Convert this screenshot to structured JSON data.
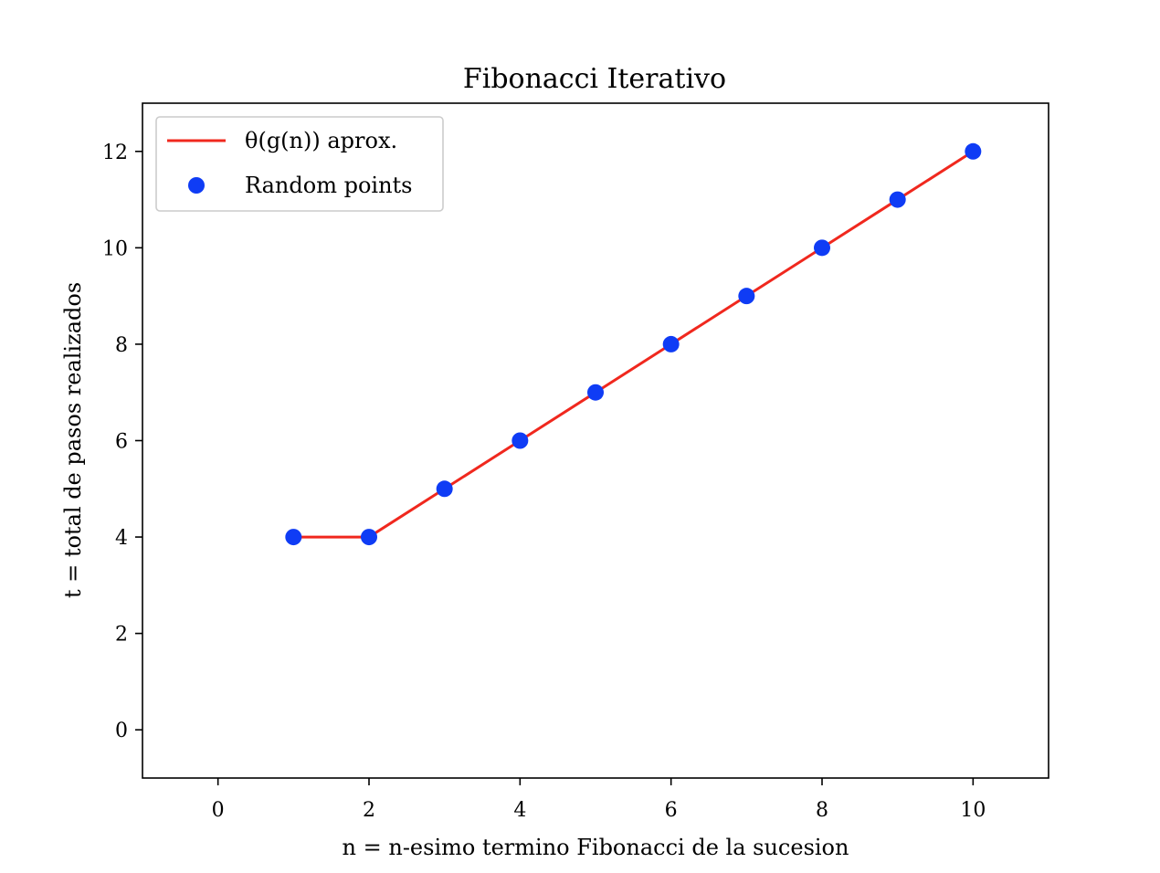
{
  "chart_data": {
    "type": "line",
    "title": "Fibonacci Iterativo",
    "xlabel": "n = n-esimo termino Fibonacci de la sucesion",
    "ylabel": "t = total de pasos realizados",
    "xlim": [
      -1,
      11
    ],
    "ylim": [
      -1,
      13
    ],
    "xticks": [
      0,
      2,
      4,
      6,
      8,
      10
    ],
    "yticks": [
      0,
      2,
      4,
      6,
      8,
      10,
      12
    ],
    "grid": false,
    "legend_position": "top-left",
    "series": [
      {
        "name": "θ(g(n)) aprox.",
        "kind": "line",
        "color": "#f0281e",
        "x": [
          1,
          2,
          3,
          4,
          5,
          6,
          7,
          8,
          9,
          10
        ],
        "y": [
          4,
          4,
          5,
          6,
          7,
          8,
          9,
          10,
          11,
          12
        ]
      },
      {
        "name": "Random points",
        "kind": "scatter",
        "color": "#0f3cf5",
        "x": [
          1,
          2,
          3,
          4,
          5,
          6,
          7,
          8,
          9,
          10
        ],
        "y": [
          4,
          4,
          5,
          6,
          7,
          8,
          9,
          10,
          11,
          12
        ]
      }
    ]
  }
}
